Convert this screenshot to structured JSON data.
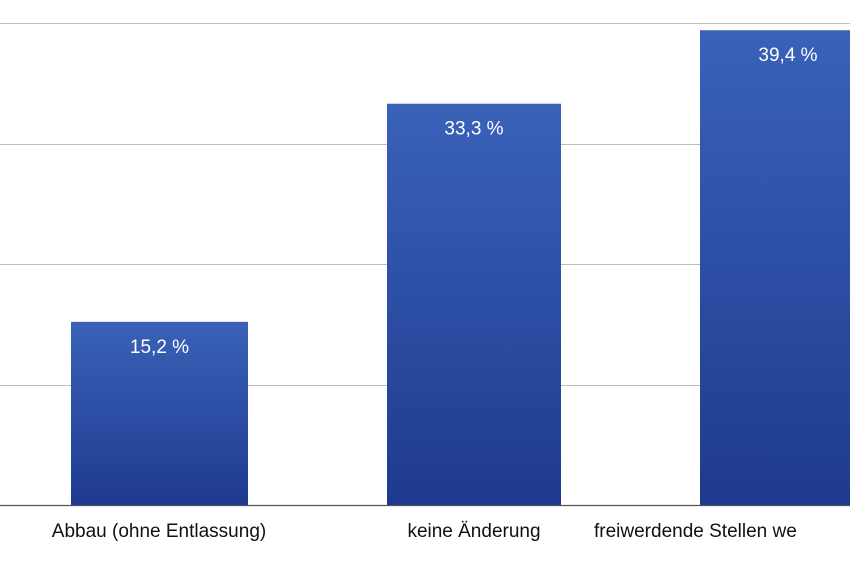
{
  "chart_data": {
    "type": "bar",
    "categories": [
      "Abbau (ohne Entlassung)",
      "keine Änderung",
      "freiwerdende Stellen we"
    ],
    "values": [
      15.2,
      33.3,
      39.4
    ],
    "data_labels": [
      "15,2 %",
      "33,3 %",
      "39,4 %"
    ],
    "ylim": [
      0,
      40
    ],
    "grid": true,
    "bar_color_top": "#3a62b8",
    "bar_color_bottom": "#1e3a8f"
  }
}
